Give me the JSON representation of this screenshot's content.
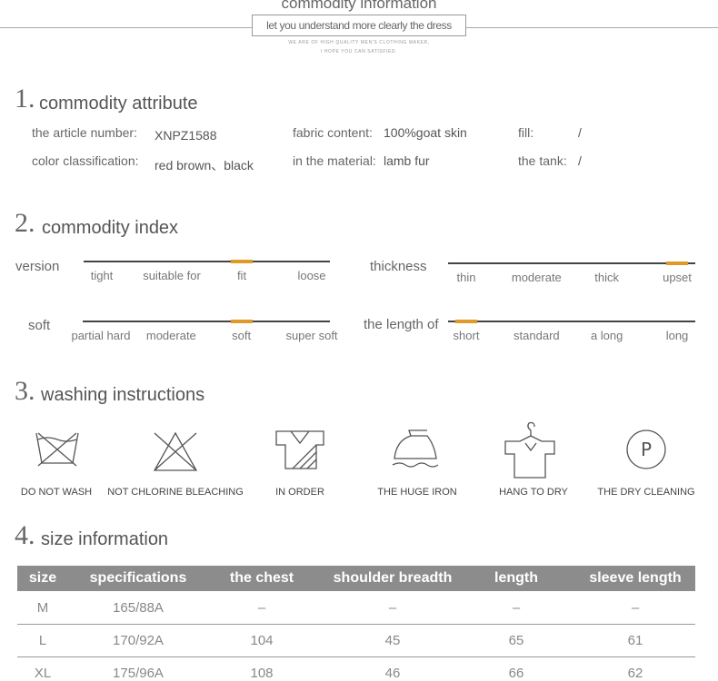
{
  "header": {
    "title": "commodity information",
    "subtitle": "let you understand more clearly the dress",
    "note": [
      "WE ARE OF HIGH QUALITY MEN'S CLOTHING MAKER,",
      "I HOPE YOU CAN SATISFIED."
    ]
  },
  "attribute": {
    "number": "1.",
    "title": "commodity attribute",
    "items": [
      {
        "label": "the article number:",
        "value": "XNPZ1588"
      },
      {
        "label": "fabric content:",
        "value": "100%goat skin"
      },
      {
        "label": "fill:",
        "value": "/"
      },
      {
        "label": "color classification:",
        "value": "red brown、black"
      },
      {
        "label": "in the material:",
        "value": "lamb fur"
      },
      {
        "label": "the tank:",
        "value": "/"
      }
    ]
  },
  "index": {
    "number": "2.",
    "title": "commodity index",
    "scales": [
      {
        "label": "version",
        "options": [
          "tight",
          "suitable for",
          "fit",
          "loose"
        ],
        "selected": 2
      },
      {
        "label": "thickness",
        "options": [
          "thin",
          "moderate",
          "thick",
          "upset"
        ],
        "selected": 3
      },
      {
        "label": "soft",
        "options": [
          "partial hard",
          "moderate",
          "soft",
          "super soft"
        ],
        "selected": 2
      },
      {
        "label": "the length of",
        "options": [
          "short",
          "standard",
          "a long",
          "long"
        ],
        "selected": 0
      }
    ]
  },
  "washing": {
    "number": "3.",
    "title": "washing instructions",
    "items": [
      "DO NOT WASH",
      "NOT CHLORINE BLEACHING",
      "IN ORDER",
      "THE HUGE IRON",
      "HANG TO DRY",
      "THE DRY CLEANING"
    ]
  },
  "size": {
    "number": "4.",
    "title": "size information",
    "table": {
      "header": [
        "size",
        "specifications",
        "the chest",
        "shoulder breadth",
        "length",
        "sleeve length"
      ],
      "rows": [
        [
          "M",
          "165/88A",
          "–",
          "–",
          "–",
          "–"
        ],
        [
          "L",
          "170/92A",
          "104",
          "45",
          "65",
          "61"
        ],
        [
          "XL",
          "175/96A",
          "108",
          "46",
          "66",
          "62"
        ]
      ]
    }
  }
}
